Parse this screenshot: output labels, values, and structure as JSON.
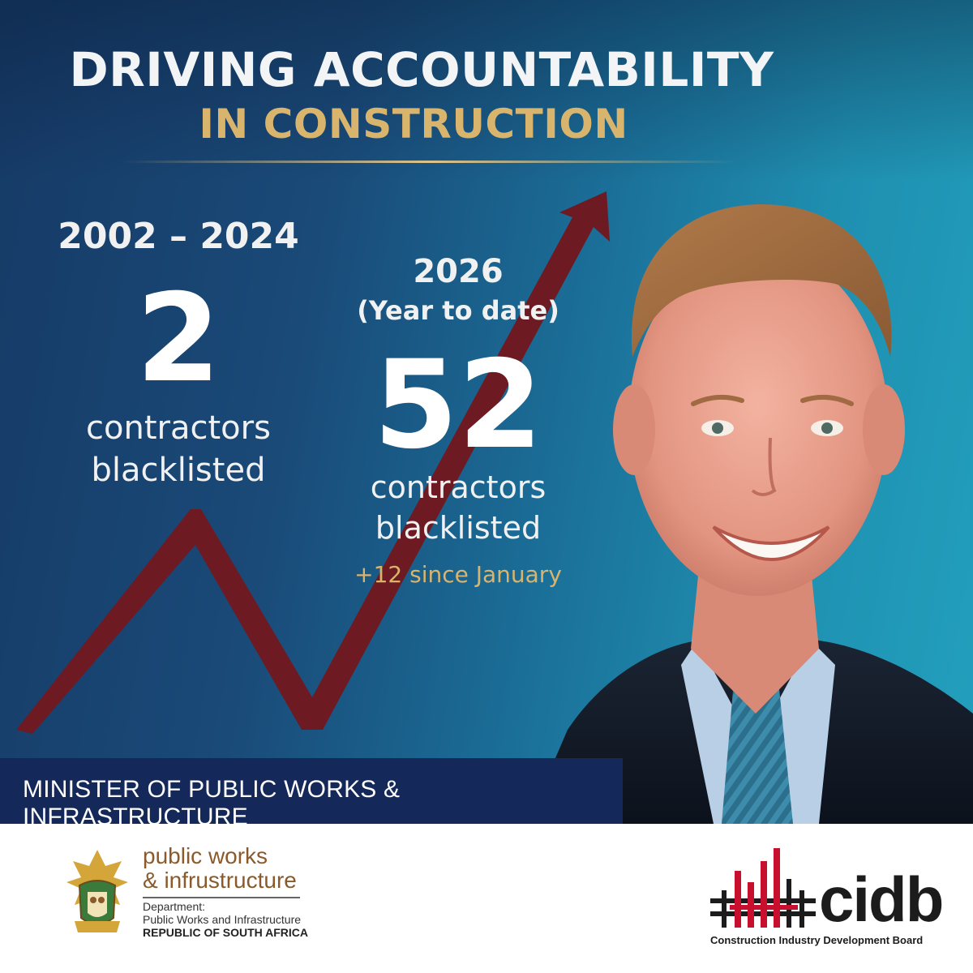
{
  "headline": {
    "line1": "DRIVING ACCOUNTABILITY",
    "line2": "IN CONSTRUCTION"
  },
  "stats": {
    "before": {
      "period": "2002 – 2024",
      "value": "2",
      "label_line1": "contractors",
      "label_line2": "blacklisted"
    },
    "after": {
      "period": "2026",
      "period_note": "(Year to date)",
      "value": "52",
      "label_line1": "contractors",
      "label_line2": "blacklisted",
      "note": "+12 since January"
    }
  },
  "caption": "MINISTER OF PUBLIC WORKS & INFRASTRUCTURE",
  "footer": {
    "department": {
      "name_line1": "public works",
      "name_line2": "& infrustructure",
      "line1": "Department:",
      "line2": "Public Works and Infrastructure",
      "line3": "REPUBLIC OF SOUTH AFRICA"
    },
    "cidb": {
      "wordmark": "cidb",
      "subtitle": "Construction Industry Development Board"
    }
  },
  "colors": {
    "gold": "#d9b46c",
    "trend_arrow": "#6e1a22",
    "caption_bar": "#14285a",
    "cidb_red": "#c8102e"
  }
}
